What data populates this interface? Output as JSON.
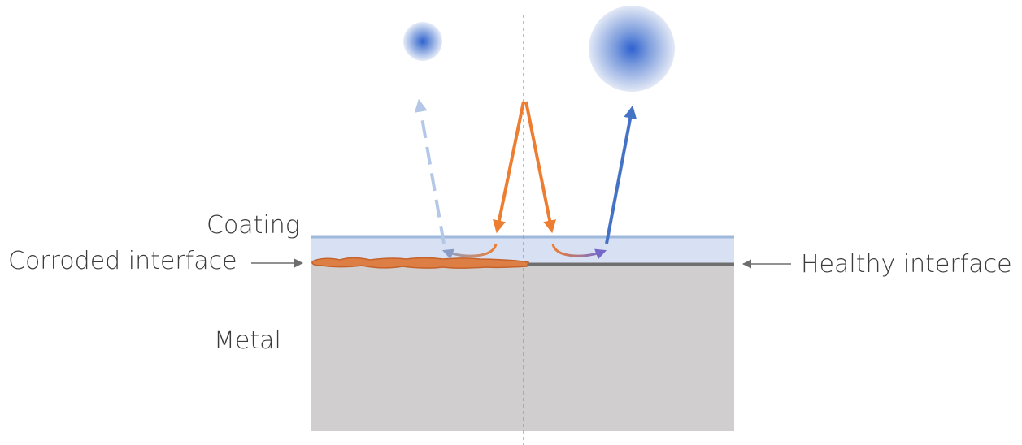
{
  "labels": {
    "coating": "Coating",
    "corroded_interface": "Corroded interface",
    "healthy_interface": "Healthy interface",
    "metal": "Metal"
  },
  "colors": {
    "coating_fill": "#d8e1f3",
    "coating_top_edge": "#9fb9dd",
    "metal_fill": "#d0cece",
    "corrosion": "#dd7f45",
    "corrosion_edge": "#c5612a",
    "healthy_line": "#6f6f6f",
    "incident_beam": "#ed7d31",
    "reflected_beam": "#4472c4",
    "weak_reflected_beam": "#b4c7e7",
    "centerline": "#9a9a9a",
    "pointer_arrow": "#6d6d6d"
  },
  "features": {
    "left_reflection": "weak (dashed), small spot",
    "right_reflection": "strong (solid), large spot"
  }
}
